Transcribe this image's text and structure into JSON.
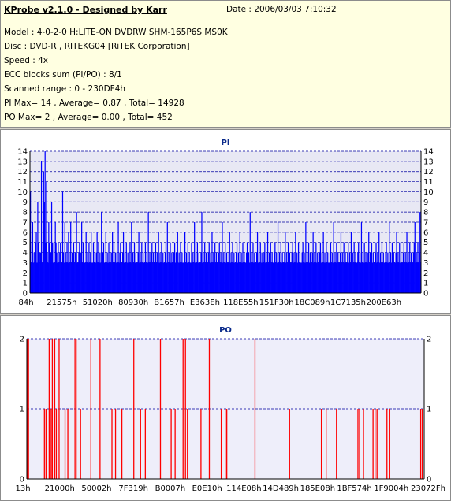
{
  "info": {
    "title": "KProbe v2.1.0 - Designed by Karr",
    "date": "Date : 2006/03/03 7:10:32",
    "model": "Model : 4-0-2-0 H:LITE-ON DVDRW SHM-165P6S MS0K",
    "disc": "Disc : DVD-R , RITEKG04 [RiTEK Corporation]",
    "speed": "Speed : 4x",
    "ecc": "ECC blocks sum (PI/PO) : 8/1",
    "range": "Scanned range : 0 - 230DF4h",
    "pi_stats": "PI Max= 14 , Average= 0.87 , Total= 14928",
    "po_stats": "PO Max= 2 , Average= 0.00 , Total= 452"
  },
  "colors": {
    "pi_bars": "#0000ff",
    "po_bars": "#ff0000",
    "pi_background": "#e8e8f4",
    "po_background": "#eeeefa",
    "grid": "#0000a0",
    "title": "#0a2a8a",
    "info_background": "#ffffe1"
  },
  "chart_data": [
    {
      "type": "bar",
      "title": "PI",
      "xlabel": "",
      "ylabel": "",
      "x_range_hex": [
        "0h",
        "230DF4h"
      ],
      "ylim": [
        0,
        14
      ],
      "y_ticks": [
        0,
        1,
        2,
        3,
        4,
        5,
        6,
        7,
        8,
        9,
        10,
        11,
        12,
        13,
        14
      ],
      "x_tick_labels": [
        "84h",
        "21575h",
        "51020h",
        "80930h",
        "B1657h",
        "E363Eh",
        "118E55h",
        "151F30h",
        "18C089h",
        "1C7135h",
        "200E63h"
      ],
      "grid": true,
      "max": 14,
      "average": 0.87,
      "total": 14928,
      "series": [
        {
          "values": [
            10,
            3,
            5,
            7,
            3,
            4,
            3,
            5,
            6,
            3,
            9,
            5,
            3,
            4,
            4,
            13,
            3,
            5,
            12,
            9,
            14,
            5,
            11,
            4,
            3,
            7,
            5,
            3,
            4,
            9,
            5,
            3,
            5,
            3,
            7,
            5,
            4,
            3,
            5,
            3,
            4,
            5,
            3,
            3,
            10,
            4,
            3,
            7,
            4,
            3,
            5,
            3,
            6,
            4,
            3,
            7,
            3,
            4,
            3,
            5,
            3,
            4,
            4,
            8,
            3,
            3,
            4,
            5,
            3,
            4,
            7,
            3,
            5,
            4,
            3,
            3,
            6,
            3,
            4,
            3,
            5,
            3,
            4,
            6,
            3,
            3,
            5,
            3,
            4,
            3,
            4,
            6,
            3,
            5,
            3,
            4,
            3,
            8,
            3,
            4,
            5,
            3,
            3,
            6,
            3,
            4,
            3,
            5,
            3,
            4,
            3,
            4,
            6,
            3,
            5,
            3,
            4,
            3,
            4,
            3,
            7,
            3,
            4,
            5,
            3,
            3,
            4,
            6,
            3,
            4,
            3,
            5,
            3,
            4,
            3,
            3,
            5,
            3,
            7,
            3,
            4,
            3,
            5,
            3,
            4,
            3,
            3,
            4,
            6,
            3,
            4,
            3,
            5,
            3,
            4,
            3,
            3,
            5,
            3,
            4,
            3,
            8,
            3,
            4,
            3,
            4,
            5,
            3,
            4,
            3,
            3,
            5,
            3,
            4,
            3,
            6,
            3,
            4,
            3,
            5,
            3,
            4,
            3,
            3,
            4,
            5,
            3,
            7,
            3,
            4,
            3,
            5,
            3,
            4,
            3,
            3,
            4,
            5,
            3,
            4,
            3,
            6,
            3,
            4,
            3,
            5,
            3,
            4,
            3,
            3,
            4,
            6,
            3,
            4,
            3,
            5,
            3,
            4,
            3,
            3,
            5,
            3,
            4,
            3,
            7,
            3,
            4,
            3,
            5,
            3,
            4,
            3,
            3,
            4,
            8,
            3,
            4,
            3,
            5,
            3,
            4,
            3,
            3,
            4,
            5,
            3,
            4,
            3,
            6,
            3,
            4,
            3,
            5,
            3,
            4,
            3,
            3,
            4,
            5,
            3,
            4,
            3,
            7,
            3,
            4,
            3,
            5,
            3,
            4,
            3,
            3,
            4,
            6,
            3,
            4,
            3,
            5,
            3,
            4,
            3,
            3,
            4,
            5,
            3,
            4,
            3,
            6,
            3,
            4,
            3,
            5,
            3,
            4,
            3,
            3,
            4,
            5,
            3,
            4,
            3,
            8,
            3,
            4,
            3,
            5,
            3,
            4,
            3,
            3,
            4,
            6,
            3,
            4,
            3,
            5,
            3,
            4,
            3,
            3,
            4,
            5,
            3,
            4,
            3,
            6,
            3,
            4,
            3,
            5,
            3,
            4,
            3,
            3,
            4,
            5,
            3,
            4,
            3,
            7,
            3,
            4,
            3,
            5,
            3,
            4,
            3,
            3,
            4,
            6,
            3,
            4,
            3,
            5,
            3,
            4,
            3,
            3,
            4,
            5,
            3,
            4,
            3,
            6,
            3,
            4,
            3,
            5,
            3,
            4,
            3,
            3,
            4,
            5,
            3,
            4,
            3,
            7,
            3,
            4,
            3,
            5,
            3,
            4,
            3,
            3,
            4,
            6,
            3,
            4,
            3,
            5,
            3,
            4,
            3,
            3,
            4,
            5,
            3,
            4,
            3,
            6,
            3,
            4,
            3,
            5,
            3,
            4,
            3,
            3,
            4,
            5,
            3,
            4,
            3,
            7,
            3,
            4,
            3,
            5,
            3,
            4,
            3,
            3,
            4,
            6,
            3,
            4,
            3,
            5,
            3,
            4,
            3,
            3,
            4,
            5,
            3,
            4,
            3,
            6,
            3,
            4,
            3,
            5,
            3,
            4,
            3,
            3,
            4,
            5,
            3,
            4,
            3,
            7,
            3,
            4,
            3,
            5,
            3,
            4,
            3,
            3,
            4,
            6,
            3,
            4,
            3,
            5,
            3,
            4,
            3,
            3,
            4,
            5,
            3,
            4,
            3,
            6,
            3,
            4,
            3,
            5,
            3,
            4,
            3,
            3,
            4,
            5,
            3,
            4,
            3,
            7,
            3,
            4,
            3,
            5,
            3,
            4,
            3,
            3,
            4,
            6,
            3,
            4,
            3,
            5,
            3,
            4,
            3,
            3,
            4,
            5,
            3,
            4,
            3,
            6,
            3,
            4,
            3,
            5,
            3,
            4,
            3,
            3,
            4,
            5,
            7,
            3,
            4,
            3,
            5,
            3,
            4,
            8,
            3
          ]
        }
      ]
    },
    {
      "type": "bar",
      "title": "PO",
      "xlabel": "",
      "ylabel": "",
      "x_range_hex": [
        "0h",
        "230DF4h"
      ],
      "ylim": [
        0,
        2
      ],
      "y_ticks": [
        0,
        1,
        2
      ],
      "x_tick_labels": [
        "13h",
        "21000h",
        "50002h",
        "7F319h",
        "B0007h",
        "E0E10h",
        "114E08h",
        "14D489h",
        "185E08h",
        "1BF574h",
        "1F9004h",
        "23072Fh"
      ],
      "grid": true,
      "max": 2,
      "average": 0.0,
      "total": 452,
      "series": [
        {
          "events": [
            {
              "x": 0.0,
              "v": 2
            },
            {
              "x": 0.003,
              "v": 2
            },
            {
              "x": 0.043,
              "v": 1
            },
            {
              "x": 0.047,
              "v": 1
            },
            {
              "x": 0.055,
              "v": 2
            },
            {
              "x": 0.06,
              "v": 1
            },
            {
              "x": 0.063,
              "v": 2
            },
            {
              "x": 0.069,
              "v": 2
            },
            {
              "x": 0.073,
              "v": 1
            },
            {
              "x": 0.08,
              "v": 2
            },
            {
              "x": 0.095,
              "v": 1
            },
            {
              "x": 0.102,
              "v": 1
            },
            {
              "x": 0.12,
              "v": 2
            },
            {
              "x": 0.123,
              "v": 2
            },
            {
              "x": 0.134,
              "v": 1
            },
            {
              "x": 0.16,
              "v": 2
            },
            {
              "x": 0.183,
              "v": 2
            },
            {
              "x": 0.213,
              "v": 1
            },
            {
              "x": 0.222,
              "v": 1
            },
            {
              "x": 0.238,
              "v": 1
            },
            {
              "x": 0.268,
              "v": 2
            },
            {
              "x": 0.285,
              "v": 1
            },
            {
              "x": 0.297,
              "v": 1
            },
            {
              "x": 0.335,
              "v": 2
            },
            {
              "x": 0.362,
              "v": 1
            },
            {
              "x": 0.372,
              "v": 1
            },
            {
              "x": 0.392,
              "v": 2
            },
            {
              "x": 0.398,
              "v": 2
            },
            {
              "x": 0.403,
              "v": 1
            },
            {
              "x": 0.437,
              "v": 1
            },
            {
              "x": 0.458,
              "v": 2
            },
            {
              "x": 0.488,
              "v": 1
            },
            {
              "x": 0.498,
              "v": 1
            },
            {
              "x": 0.502,
              "v": 1
            },
            {
              "x": 0.573,
              "v": 2
            },
            {
              "x": 0.66,
              "v": 1
            },
            {
              "x": 0.74,
              "v": 1
            },
            {
              "x": 0.752,
              "v": 1
            },
            {
              "x": 0.778,
              "v": 1
            },
            {
              "x": 0.832,
              "v": 1
            },
            {
              "x": 0.836,
              "v": 1
            },
            {
              "x": 0.846,
              "v": 1
            },
            {
              "x": 0.87,
              "v": 1
            },
            {
              "x": 0.875,
              "v": 1
            },
            {
              "x": 0.88,
              "v": 1
            },
            {
              "x": 0.905,
              "v": 1
            },
            {
              "x": 0.912,
              "v": 1
            },
            {
              "x": 0.99,
              "v": 1
            },
            {
              "x": 0.994,
              "v": 1
            }
          ]
        }
      ]
    }
  ]
}
